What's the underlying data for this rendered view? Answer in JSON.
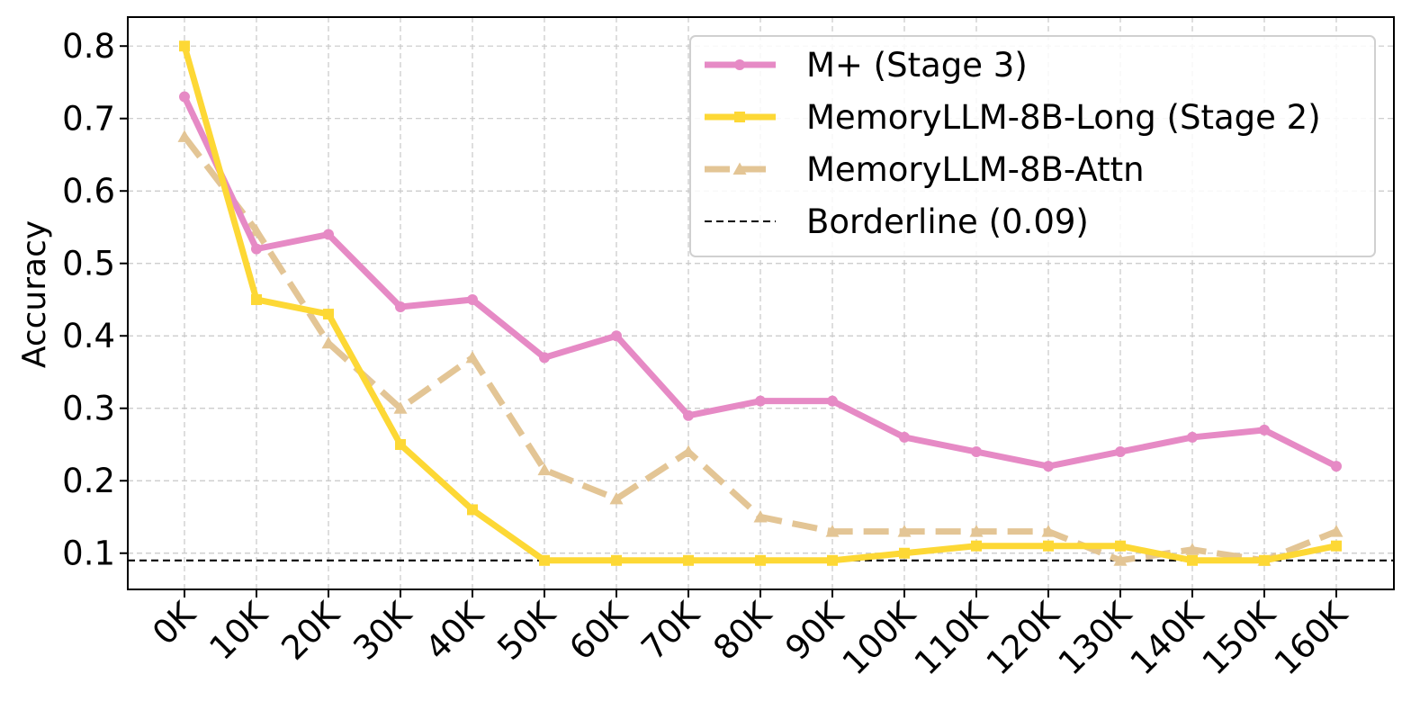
{
  "chart_data": {
    "type": "line",
    "title": "",
    "xlabel": "",
    "ylabel": "Accuracy",
    "categories": [
      "0K",
      "10K",
      "20K",
      "30K",
      "40K",
      "50K",
      "60K",
      "70K",
      "80K",
      "90K",
      "100K",
      "110K",
      "120K",
      "130K",
      "140K",
      "150K",
      "160K"
    ],
    "ylim": [
      0.05,
      0.84
    ],
    "yticks": [
      0.1,
      0.2,
      0.3,
      0.4,
      0.5,
      0.6,
      0.7,
      0.8
    ],
    "ytick_labels": [
      "0.1",
      "0.2",
      "0.3",
      "0.4",
      "0.5",
      "0.6",
      "0.7",
      "0.8"
    ],
    "grid": true,
    "legend_position": "top-right",
    "series": [
      {
        "name": "M+ (Stage 3)",
        "color": "#E68AC5",
        "style": "solid",
        "marker": "circle",
        "values": [
          0.73,
          0.52,
          0.54,
          0.44,
          0.45,
          0.37,
          0.4,
          0.29,
          0.31,
          0.31,
          0.26,
          0.24,
          0.22,
          0.24,
          0.26,
          0.27,
          0.22
        ]
      },
      {
        "name": "MemoryLLM-8B-Long (Stage 2)",
        "color": "#FDD835",
        "style": "solid",
        "marker": "square",
        "values": [
          0.8,
          0.45,
          0.43,
          0.25,
          0.16,
          0.09,
          0.09,
          0.09,
          0.09,
          0.09,
          0.1,
          0.11,
          0.11,
          0.11,
          0.09,
          0.09,
          0.11
        ]
      },
      {
        "name": "MemoryLLM-8B-Attn",
        "color": "#E3C595",
        "style": "dashed",
        "marker": "triangle",
        "values": [
          0.675,
          0.545,
          0.39,
          0.3,
          0.37,
          0.215,
          0.175,
          0.24,
          0.15,
          0.13,
          0.13,
          0.13,
          0.13,
          0.09,
          0.105,
          0.09,
          0.13
        ]
      }
    ],
    "reference_line": {
      "name": "Borderline (0.09)",
      "value": 0.09,
      "color": "#000000",
      "style": "dashed"
    }
  }
}
